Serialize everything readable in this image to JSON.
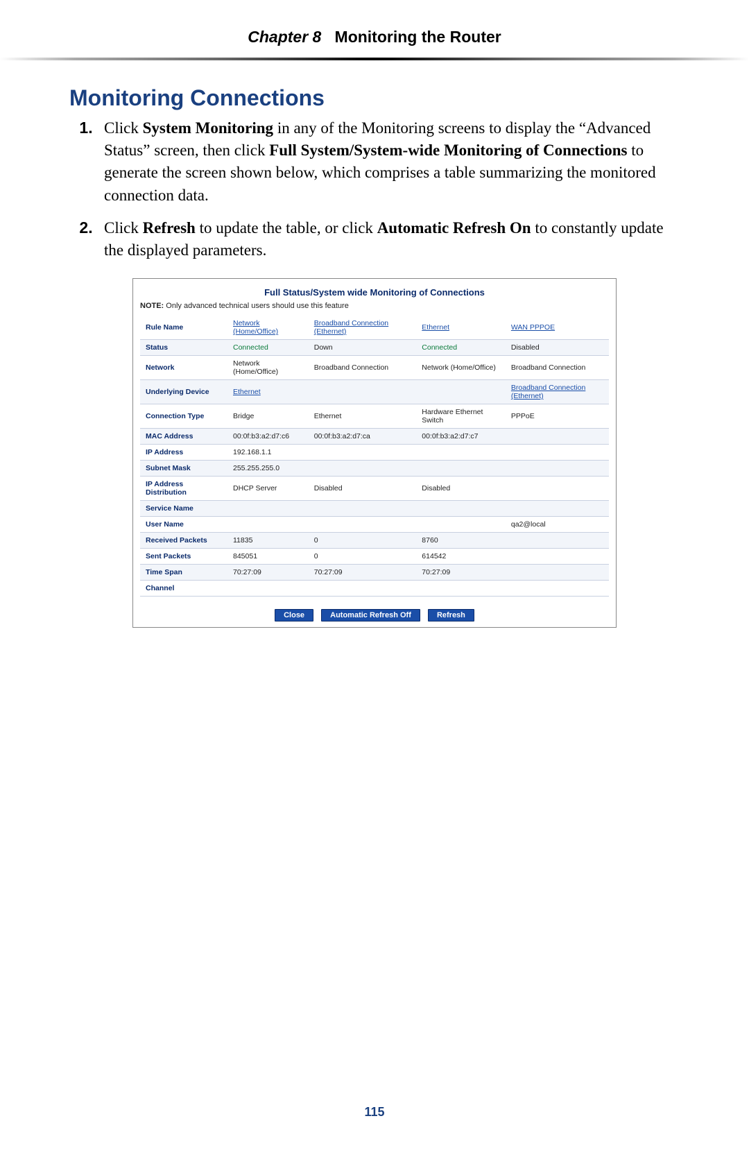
{
  "header": {
    "chapter": "Chapter 8",
    "title": "Monitoring the Router"
  },
  "section_title": "Monitoring Connections",
  "steps": {
    "s1_a": "Click ",
    "s1_b": "System Monitoring",
    "s1_c": " in any of the Monitoring screens to display the “Advanced Status” screen, then click ",
    "s1_d": "Full System/System-wide Monitoring of Connections",
    "s1_e": " to generate the screen shown below,  which comprises a table summarizing the monitored connection data.",
    "s2_a": "Click ",
    "s2_b": "Refresh",
    "s2_c": " to update the table, or click ",
    "s2_d": "Automatic Refresh On",
    "s2_e": " to constantly update the displayed parameters."
  },
  "screenshot": {
    "title": "Full Status/System wide Monitoring of Connections",
    "note_bold": "NOTE:",
    "note_text": " Only advanced technical users should use this feature",
    "rows": [
      {
        "label": "Rule Name",
        "c1": {
          "text": "Network (Home/Office)",
          "link": true
        },
        "c2": {
          "text": "Broadband Connection (Ethernet)",
          "link": true
        },
        "c3": {
          "text": "Ethernet",
          "link": true
        },
        "c4": {
          "text": "WAN PPPOE",
          "link": true
        }
      },
      {
        "label": "Status",
        "c1": {
          "text": "Connected",
          "green": true
        },
        "c2": {
          "text": "Down"
        },
        "c3": {
          "text": "Connected",
          "green": true
        },
        "c4": {
          "text": "Disabled"
        }
      },
      {
        "label": "Network",
        "c1": {
          "text": "Network (Home/Office)"
        },
        "c2": {
          "text": "Broadband Connection"
        },
        "c3": {
          "text": "Network (Home/Office)"
        },
        "c4": {
          "text": "Broadband Connection"
        }
      },
      {
        "label": "Underlying Device",
        "c1": {
          "text": "Ethernet",
          "link": true
        },
        "c2": {
          "text": ""
        },
        "c3": {
          "text": ""
        },
        "c4": {
          "text": "Broadband Connection (Ethernet)",
          "link": true
        }
      },
      {
        "label": "Connection Type",
        "c1": {
          "text": "Bridge"
        },
        "c2": {
          "text": "Ethernet"
        },
        "c3": {
          "text": "Hardware Ethernet Switch"
        },
        "c4": {
          "text": "PPPoE"
        }
      },
      {
        "label": "MAC Address",
        "c1": {
          "text": "00:0f:b3:a2:d7:c6"
        },
        "c2": {
          "text": "00:0f:b3:a2:d7:ca"
        },
        "c3": {
          "text": "00:0f:b3:a2:d7:c7"
        },
        "c4": {
          "text": ""
        }
      },
      {
        "label": "IP Address",
        "c1": {
          "text": "192.168.1.1"
        },
        "c2": {
          "text": ""
        },
        "c3": {
          "text": ""
        },
        "c4": {
          "text": ""
        }
      },
      {
        "label": "Subnet Mask",
        "c1": {
          "text": "255.255.255.0"
        },
        "c2": {
          "text": ""
        },
        "c3": {
          "text": ""
        },
        "c4": {
          "text": ""
        }
      },
      {
        "label": "IP Address Distribution",
        "c1": {
          "text": "DHCP Server"
        },
        "c2": {
          "text": "Disabled"
        },
        "c3": {
          "text": "Disabled"
        },
        "c4": {
          "text": ""
        }
      },
      {
        "label": "Service Name",
        "c1": {
          "text": ""
        },
        "c2": {
          "text": ""
        },
        "c3": {
          "text": ""
        },
        "c4": {
          "text": ""
        }
      },
      {
        "label": "User Name",
        "c1": {
          "text": ""
        },
        "c2": {
          "text": ""
        },
        "c3": {
          "text": ""
        },
        "c4": {
          "text": "qa2@local"
        }
      },
      {
        "label": "Received Packets",
        "c1": {
          "text": "11835"
        },
        "c2": {
          "text": "0"
        },
        "c3": {
          "text": "8760"
        },
        "c4": {
          "text": ""
        }
      },
      {
        "label": "Sent Packets",
        "c1": {
          "text": "845051"
        },
        "c2": {
          "text": "0"
        },
        "c3": {
          "text": "614542"
        },
        "c4": {
          "text": ""
        }
      },
      {
        "label": "Time Span",
        "c1": {
          "text": "70:27:09"
        },
        "c2": {
          "text": "70:27:09"
        },
        "c3": {
          "text": "70:27:09"
        },
        "c4": {
          "text": ""
        }
      },
      {
        "label": "Channel",
        "c1": {
          "text": ""
        },
        "c2": {
          "text": ""
        },
        "c3": {
          "text": ""
        },
        "c4": {
          "text": ""
        }
      }
    ],
    "buttons": {
      "close": "Close",
      "auto": "Automatic Refresh Off",
      "refresh": "Refresh"
    }
  },
  "page_number": "115"
}
